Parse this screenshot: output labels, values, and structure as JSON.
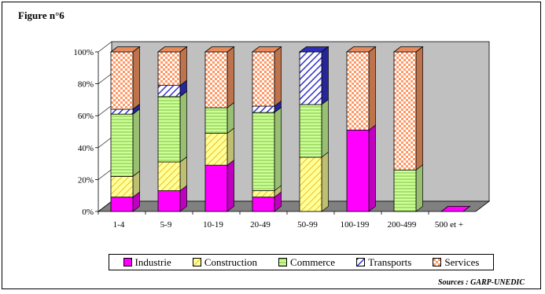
{
  "figure_label": "Figure n°6",
  "source_note": "Sources : GARP-UNEDIC",
  "colors": {
    "Industrie": "#ff00ff",
    "Construction": "#ffff99",
    "Commerce": "#ccff99",
    "Transports": "#3333cc",
    "Services": "#ff9966",
    "plot_background": "#c0c0c0"
  },
  "chart_data": {
    "type": "bar",
    "stacked": true,
    "percent_scale": true,
    "three_d": true,
    "title": "",
    "xlabel": "",
    "ylabel": "",
    "ylim": [
      0,
      100
    ],
    "y_ticks": [
      "0%",
      "20%",
      "40%",
      "60%",
      "80%",
      "100%"
    ],
    "grid": false,
    "legend_position": "bottom",
    "categories": [
      "1-4",
      "5-9",
      "10-19",
      "20-49",
      "50-99",
      "100-199",
      "200-499",
      "500 et +"
    ],
    "series": [
      {
        "name": "Industrie",
        "values": [
          9,
          13,
          29,
          9,
          0,
          51,
          0,
          0
        ]
      },
      {
        "name": "Construction",
        "values": [
          13,
          18,
          20,
          4,
          34,
          0,
          0,
          0
        ]
      },
      {
        "name": "Commerce",
        "values": [
          39,
          41,
          16,
          49,
          33,
          0,
          26,
          0
        ]
      },
      {
        "name": "Transports",
        "values": [
          3,
          7,
          0,
          4,
          33,
          0,
          0,
          0
        ]
      },
      {
        "name": "Services",
        "values": [
          36,
          21,
          35,
          34,
          0,
          49,
          74,
          0
        ]
      }
    ]
  }
}
